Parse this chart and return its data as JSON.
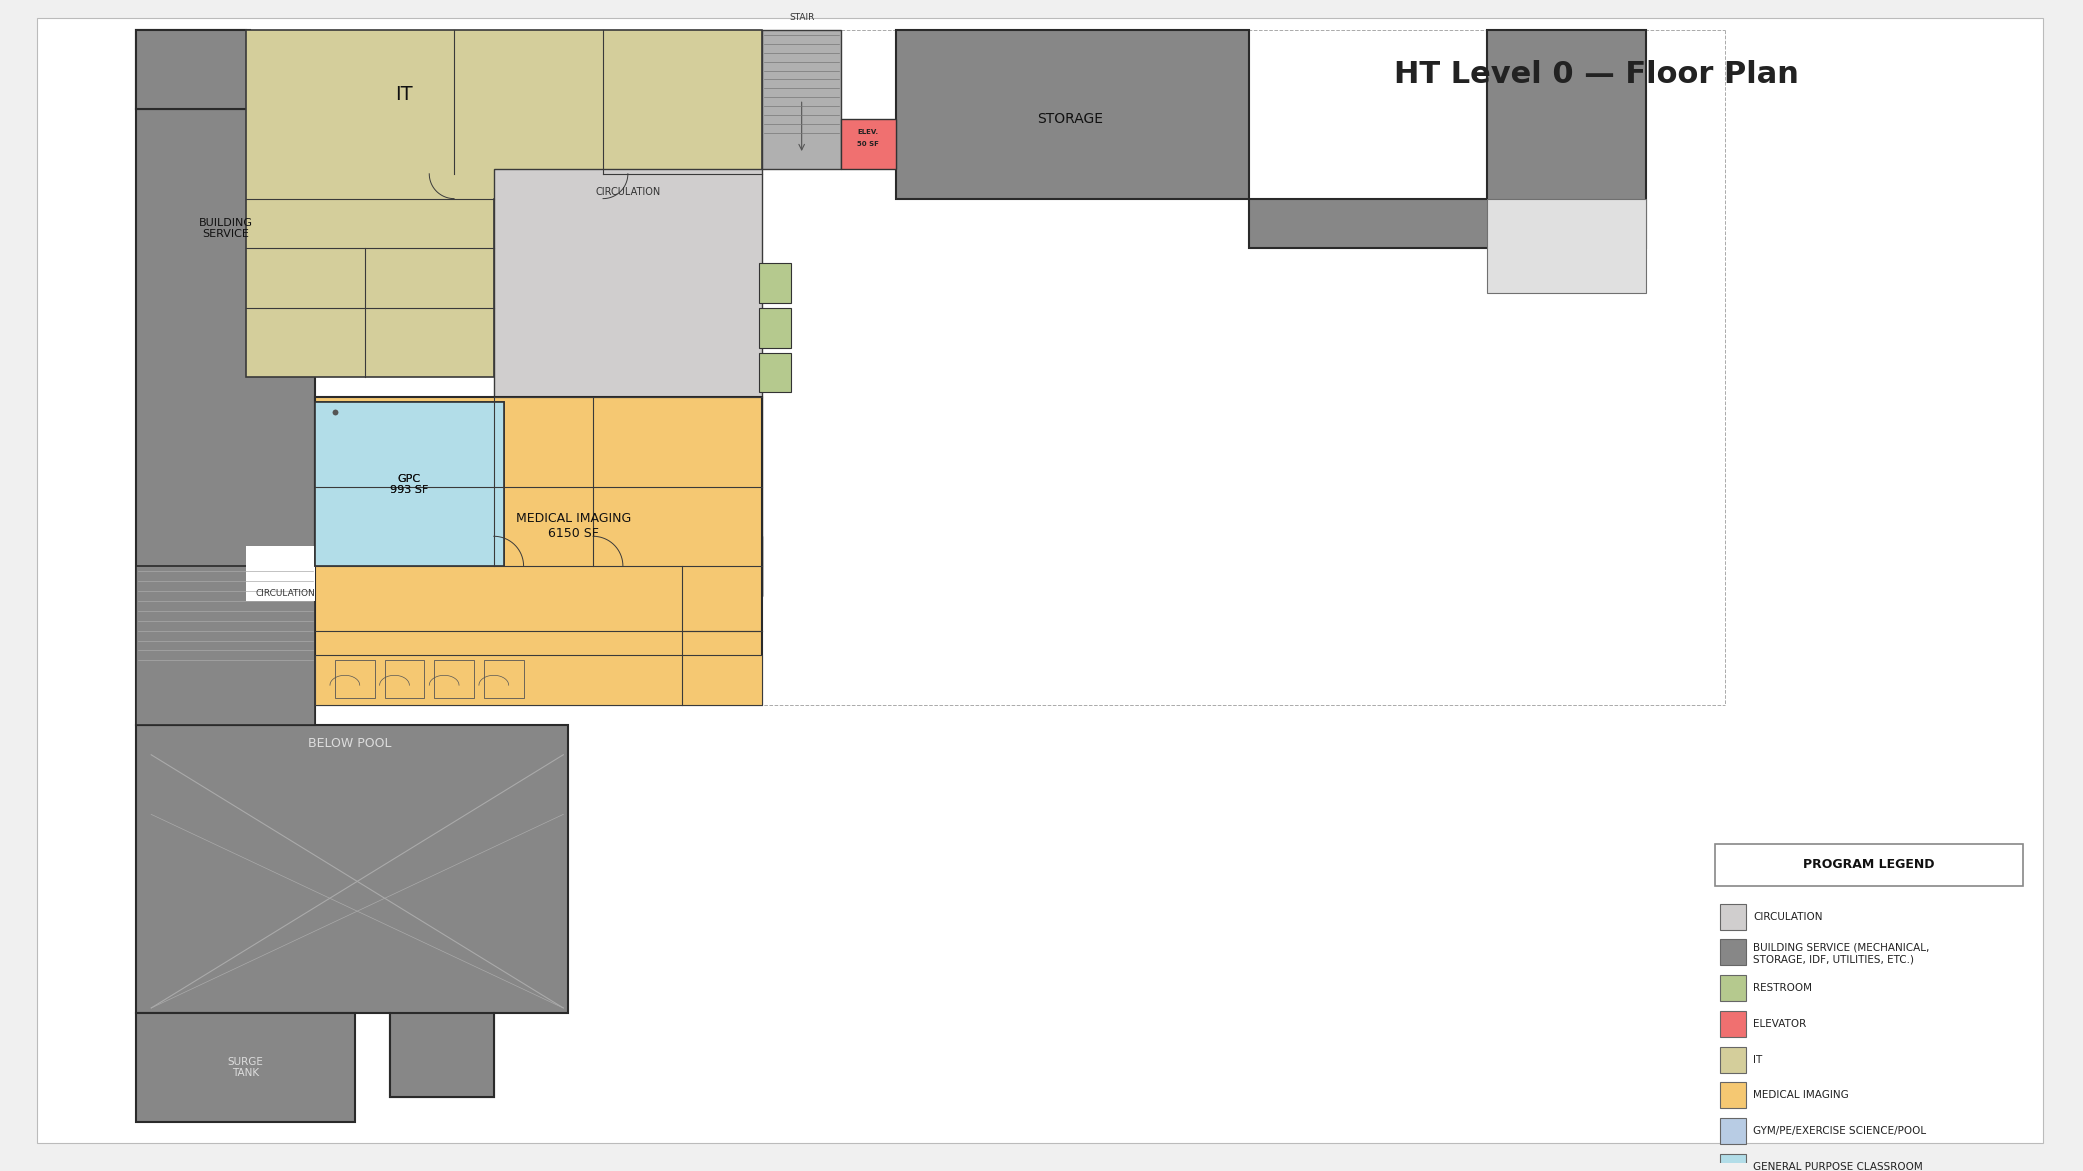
{
  "title": "HT Level 0 — Floor Plan",
  "colors": {
    "page_bg": "#f0f0f0",
    "white": "#ffffff",
    "circulation": "#d0cece",
    "building_service": "#878787",
    "restroom": "#b5c98e",
    "elevator": "#f07070",
    "it": "#d4ce9b",
    "medical_imaging": "#f5c872",
    "gym": "#b8cce4",
    "gpc": "#b2dde8",
    "wall": "#3a3a3a",
    "light_gray": "#c8c8c8"
  },
  "legend_items": [
    {
      "color": "#d0cece",
      "label": "CIRCULATION"
    },
    {
      "color": "#878787",
      "label": "BUILDING SERVICE (MECHANICAL,\nSTORAGE, IDF, UTILITIES, ETC.)"
    },
    {
      "color": "#b5c98e",
      "label": "RESTROOM"
    },
    {
      "color": "#f07070",
      "label": "ELEVATOR"
    },
    {
      "color": "#d4ce9b",
      "label": "IT"
    },
    {
      "color": "#f5c872",
      "label": "MEDICAL IMAGING"
    },
    {
      "color": "#b8cce4",
      "label": "GYM/PE/EXERCISE SCIENCE/POOL"
    },
    {
      "color": "#b2dde8",
      "label": "GENERAL PURPOSE CLASSROOM"
    }
  ]
}
